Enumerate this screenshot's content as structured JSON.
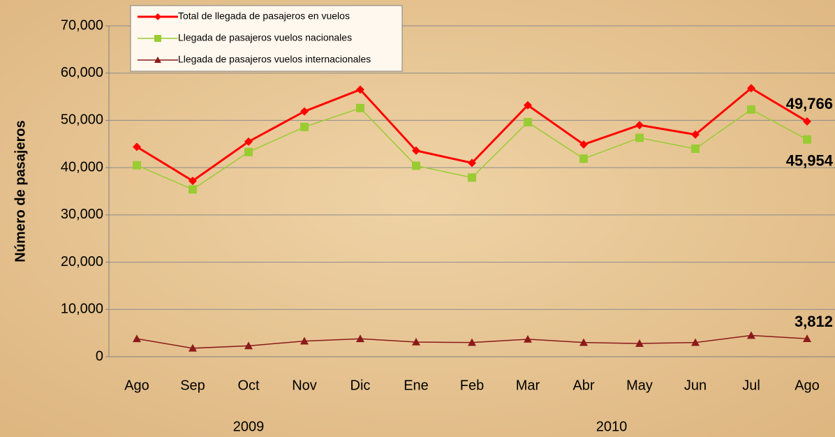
{
  "chart_data": {
    "type": "line",
    "y_label": "Número de pasajeros",
    "categories": [
      "Ago",
      "Sep",
      "Oct",
      "Nov",
      "Dic",
      "Ene",
      "Feb",
      "Mar",
      "Abr",
      "May",
      "Jun",
      "Jul",
      "Ago"
    ],
    "category_groups": [
      {
        "label": "2009",
        "span": [
          0,
          4
        ]
      },
      {
        "label": "2010",
        "span": [
          5,
          12
        ]
      }
    ],
    "series": [
      {
        "name": "Total de llegada de pasajeros en vuelos",
        "color": "#ff0000",
        "marker": "diamond",
        "values": [
          44400,
          37200,
          45500,
          51900,
          56500,
          43600,
          41000,
          53200,
          44900,
          49000,
          47000,
          56800,
          49766
        ],
        "value_labels": [
          null,
          null,
          null,
          null,
          null,
          null,
          null,
          null,
          null,
          null,
          null,
          null,
          "49,766"
        ]
      },
      {
        "name": "Llegada de pasajeros vuelos nacionales",
        "color": "#99cc33",
        "marker": "square",
        "values": [
          40500,
          35400,
          43300,
          48600,
          52600,
          40400,
          37900,
          49600,
          41900,
          46300,
          44000,
          52300,
          45954
        ],
        "value_labels": [
          null,
          null,
          null,
          null,
          null,
          null,
          null,
          null,
          null,
          null,
          null,
          null,
          "45,954"
        ]
      },
      {
        "name": "Llegada de pasajeros vuelos internacionales",
        "color": "#8b1a1a",
        "marker": "triangle",
        "values": [
          3800,
          1800,
          2300,
          3300,
          3800,
          3100,
          3000,
          3700,
          3000,
          2800,
          3000,
          4500,
          3812
        ],
        "value_labels": [
          null,
          null,
          null,
          null,
          null,
          null,
          null,
          null,
          null,
          null,
          null,
          null,
          "3,812"
        ]
      }
    ],
    "ylim": [
      0,
      70000
    ],
    "yticks": [
      0,
      {
        "value": 10000,
        "label": "10,000"
      },
      {
        "value": 20000,
        "label": "20,000"
      },
      {
        "value": 30000,
        "label": "30,000"
      },
      {
        "value": 40000,
        "label": "40,000"
      },
      {
        "value": 50000,
        "label": "50,000"
      },
      {
        "value": 60000,
        "label": "60,000"
      },
      {
        "value": 70000,
        "label": "70,000"
      }
    ],
    "grid": true,
    "legend": "top-left"
  }
}
